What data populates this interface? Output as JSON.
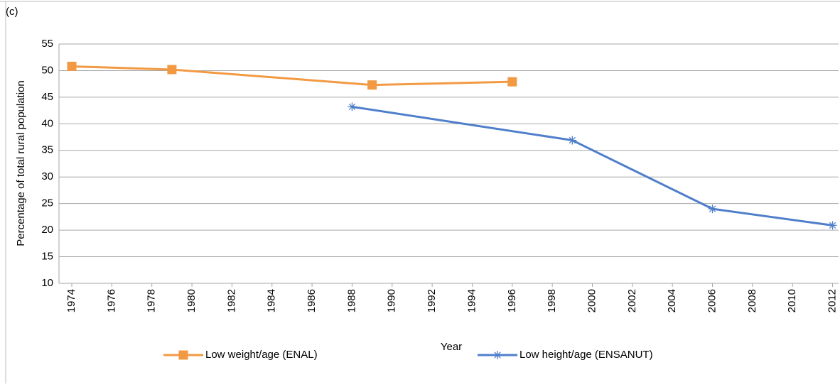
{
  "chart_data": {
    "type": "line",
    "annotation": "(c)",
    "xlabel": "Year",
    "ylabel": "Percentage of total rural population",
    "xlim": [
      1973.36,
      2012.3
    ],
    "xticks": [
      1974,
      1976,
      1978,
      1980,
      1982,
      1984,
      1986,
      1988,
      1990,
      1992,
      1994,
      1996,
      1998,
      2000,
      2002,
      2004,
      2006,
      2008,
      2010,
      2012
    ],
    "ylim": [
      10,
      55
    ],
    "yticks": [
      10,
      15,
      20,
      25,
      30,
      35,
      40,
      45,
      50,
      55
    ],
    "grid": true,
    "legend": "bottom",
    "series": [
      {
        "name": "Low weight/age (ENAL)",
        "color": "#f29a43",
        "marker": "square",
        "x": [
          1974,
          1979,
          1989,
          1996
        ],
        "values": [
          50.8,
          50.2,
          47.3,
          47.9
        ]
      },
      {
        "name": "Low height/age (ENSANUT)",
        "color": "#4f7fcb",
        "marker": "asterisk",
        "x": [
          1988,
          1999,
          2006,
          2012
        ],
        "values": [
          43.2,
          36.9,
          24.0,
          20.9
        ]
      }
    ]
  }
}
